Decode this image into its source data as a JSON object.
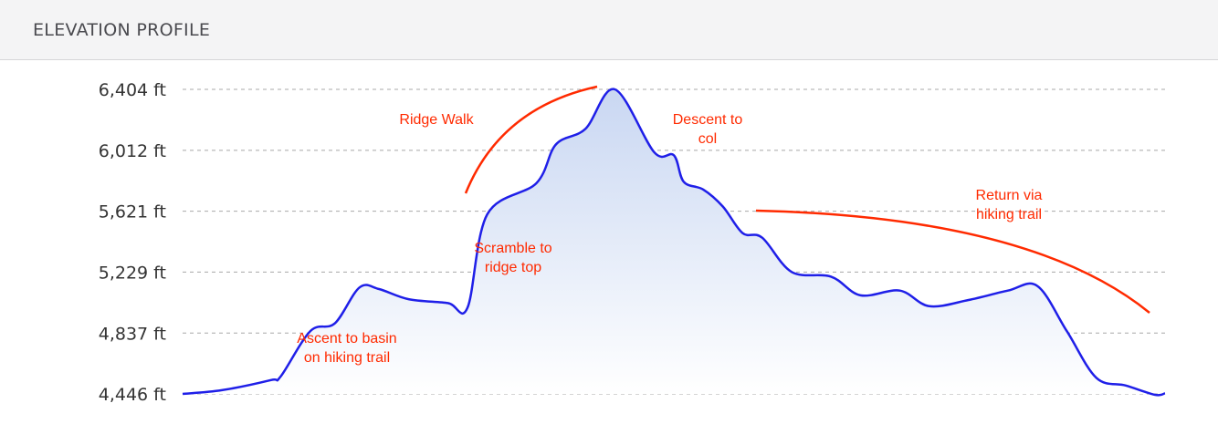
{
  "header": {
    "title": "ELEVATION PROFILE"
  },
  "colors": {
    "line": "#1f1fe8",
    "fill_top": "#c9d7f2",
    "fill_bottom": "#ffffff",
    "annotation": "#ff2a00",
    "grid": "#a8a8a8"
  },
  "chart_data": {
    "type": "area",
    "title": "ELEVATION PROFILE",
    "xlabel": "",
    "ylabel": "",
    "ylim": [
      4446,
      6404
    ],
    "y_ticks": [
      "4,446 ft",
      "4,837 ft",
      "5,229 ft",
      "5,621 ft",
      "6,012 ft",
      "6,404 ft"
    ],
    "y_tick_values": [
      4446,
      4837,
      5229,
      5621,
      6012,
      6404
    ],
    "grid": true,
    "x": [
      0,
      0.04,
      0.09,
      0.1,
      0.13,
      0.155,
      0.18,
      0.2,
      0.23,
      0.27,
      0.29,
      0.31,
      0.36,
      0.38,
      0.41,
      0.44,
      0.48,
      0.5,
      0.51,
      0.53,
      0.55,
      0.57,
      0.59,
      0.62,
      0.66,
      0.69,
      0.73,
      0.76,
      0.8,
      0.84,
      0.87,
      0.9,
      0.93,
      0.96,
      0.99,
      1.0
    ],
    "values": [
      4446,
      4470,
      4535,
      4560,
      4850,
      4900,
      5130,
      5120,
      5055,
      5030,
      5000,
      5600,
      5800,
      6050,
      6150,
      6404,
      6000,
      5980,
      5810,
      5760,
      5650,
      5480,
      5450,
      5230,
      5200,
      5080,
      5110,
      5010,
      5050,
      5110,
      5140,
      4850,
      4550,
      4500,
      4440,
      4450
    ],
    "annotations": [
      {
        "lines": [
          "Ascent to basin",
          "on hiking trail"
        ]
      },
      {
        "lines": [
          "Scramble to",
          "ridge top"
        ]
      },
      {
        "lines": [
          "Ridge Walk"
        ]
      },
      {
        "lines": [
          "Descent to",
          "col"
        ]
      },
      {
        "lines": [
          "Return via",
          "hiking trail"
        ]
      }
    ]
  }
}
